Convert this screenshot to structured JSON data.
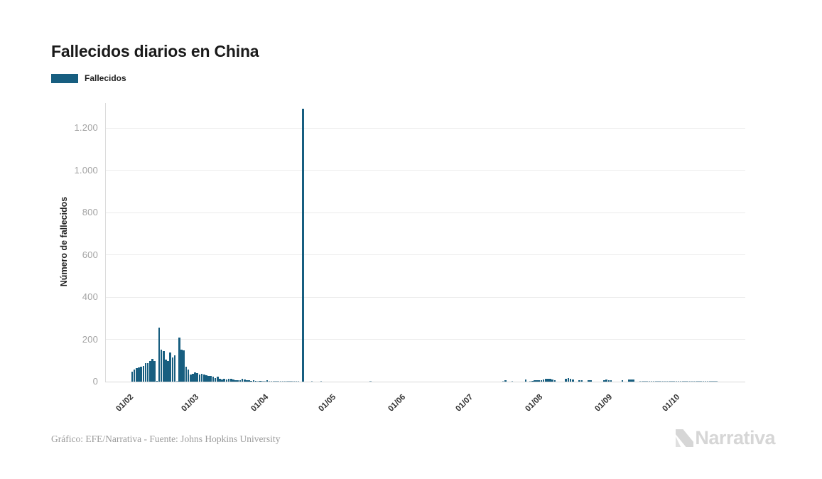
{
  "header": {
    "title": "Fallecidos diarios en China"
  },
  "legend": {
    "label": "Fallecidos"
  },
  "y_axis": {
    "title": "Número de fallecidos"
  },
  "footer": {
    "credit": "Gráfico: EFE/Narrativa - Fuente: Johns Hopkins University",
    "brand": "Narrativa"
  },
  "colors": {
    "bar": "#175e80",
    "grid": "#ececec",
    "axis": "#d9d9d9",
    "y_tick_text": "#a3a3a3",
    "x_tick_text": "#333333",
    "title_text": "#1a1a1a",
    "footer_text": "#9b9b9b",
    "logo": "#d6d6d6"
  },
  "chart_data": {
    "type": "bar",
    "title": "Fallecidos diarios en China",
    "ylabel": "Número de fallecidos",
    "xlabel": "",
    "grid": "horizontal",
    "legend_position": "top-left",
    "ylim": [
      0,
      1300
    ],
    "y_ticks": [
      {
        "value": 0,
        "label": "0"
      },
      {
        "value": 200,
        "label": "200"
      },
      {
        "value": 400,
        "label": "400"
      },
      {
        "value": 600,
        "label": "600"
      },
      {
        "value": 800,
        "label": "800"
      },
      {
        "value": 1000,
        "label": "1.000"
      },
      {
        "value": 1200,
        "label": "1.200"
      }
    ],
    "x_ticks": [
      {
        "day_offset": 0,
        "label": "01/02"
      },
      {
        "day_offset": 29,
        "label": "01/03"
      },
      {
        "day_offset": 60,
        "label": "01/04"
      },
      {
        "day_offset": 90,
        "label": "01/05"
      },
      {
        "day_offset": 121,
        "label": "01/06"
      },
      {
        "day_offset": 151,
        "label": "01/07"
      },
      {
        "day_offset": 182,
        "label": "01/08"
      },
      {
        "day_offset": 213,
        "label": "01/09"
      },
      {
        "day_offset": 243,
        "label": "01/10"
      }
    ],
    "start_date": "01/02/2020",
    "frequency": "daily",
    "notable": {
      "max_value": 1290,
      "max_date_approx": "17/04/2020",
      "february_peak": 254,
      "february_peak_date_approx": "13/02/2020"
    },
    "series": [
      {
        "name": "Fallecidos",
        "values": [
          46,
          57,
          64,
          66,
          72,
          73,
          86,
          89,
          97,
          108,
          97,
          5,
          254,
          152,
          143,
          104,
          98,
          139,
          115,
          125,
          4,
          207,
          150,
          147,
          72,
          58,
          35,
          37,
          44,
          42,
          33,
          36,
          32,
          29,
          28,
          28,
          23,
          17,
          22,
          13,
          11,
          13,
          10,
          14,
          13,
          11,
          8,
          7,
          6,
          15,
          9,
          7,
          6,
          5,
          6,
          5,
          4,
          5,
          4,
          3,
          6,
          4,
          4,
          3,
          2,
          2,
          1,
          2,
          2,
          1,
          2,
          1,
          1,
          1,
          2,
          0,
          1290,
          0,
          0,
          0,
          1,
          0,
          0,
          0,
          1,
          0,
          0,
          0,
          0,
          0,
          0,
          0,
          0,
          0,
          0,
          0,
          0,
          0,
          0,
          0,
          0,
          0,
          0,
          0,
          0,
          0,
          1,
          0,
          0,
          0,
          0,
          0,
          0,
          0,
          0,
          0,
          0,
          0,
          0,
          0,
          0,
          0,
          0,
          0,
          0,
          0,
          0,
          0,
          0,
          0,
          0,
          0,
          0,
          0,
          0,
          0,
          0,
          0,
          0,
          0,
          0,
          0,
          0,
          0,
          0,
          0,
          0,
          0,
          0,
          0,
          0,
          0,
          0,
          0,
          0,
          0,
          0,
          0,
          0,
          0,
          0,
          0,
          0,
          0,
          0,
          3,
          7,
          0,
          0,
          4,
          0,
          0,
          0,
          0,
          0,
          10,
          0,
          3,
          5,
          6,
          7,
          6,
          7,
          10,
          12,
          14,
          12,
          10,
          8,
          0,
          0,
          0,
          0,
          14,
          16,
          12,
          10,
          0,
          0,
          7,
          6,
          0,
          0,
          7,
          6,
          0,
          0,
          0,
          0,
          0,
          8,
          9,
          8,
          8,
          0,
          0,
          0,
          0,
          7,
          0,
          0,
          10,
          11,
          9,
          0,
          0,
          1,
          1,
          1,
          1,
          1,
          1,
          1,
          1,
          1,
          1,
          1,
          1,
          1,
          1,
          1,
          1,
          1,
          1,
          1,
          1,
          1,
          1,
          1,
          1,
          1,
          1,
          1,
          1,
          1,
          1,
          1,
          1,
          1,
          1,
          1
        ]
      }
    ]
  }
}
